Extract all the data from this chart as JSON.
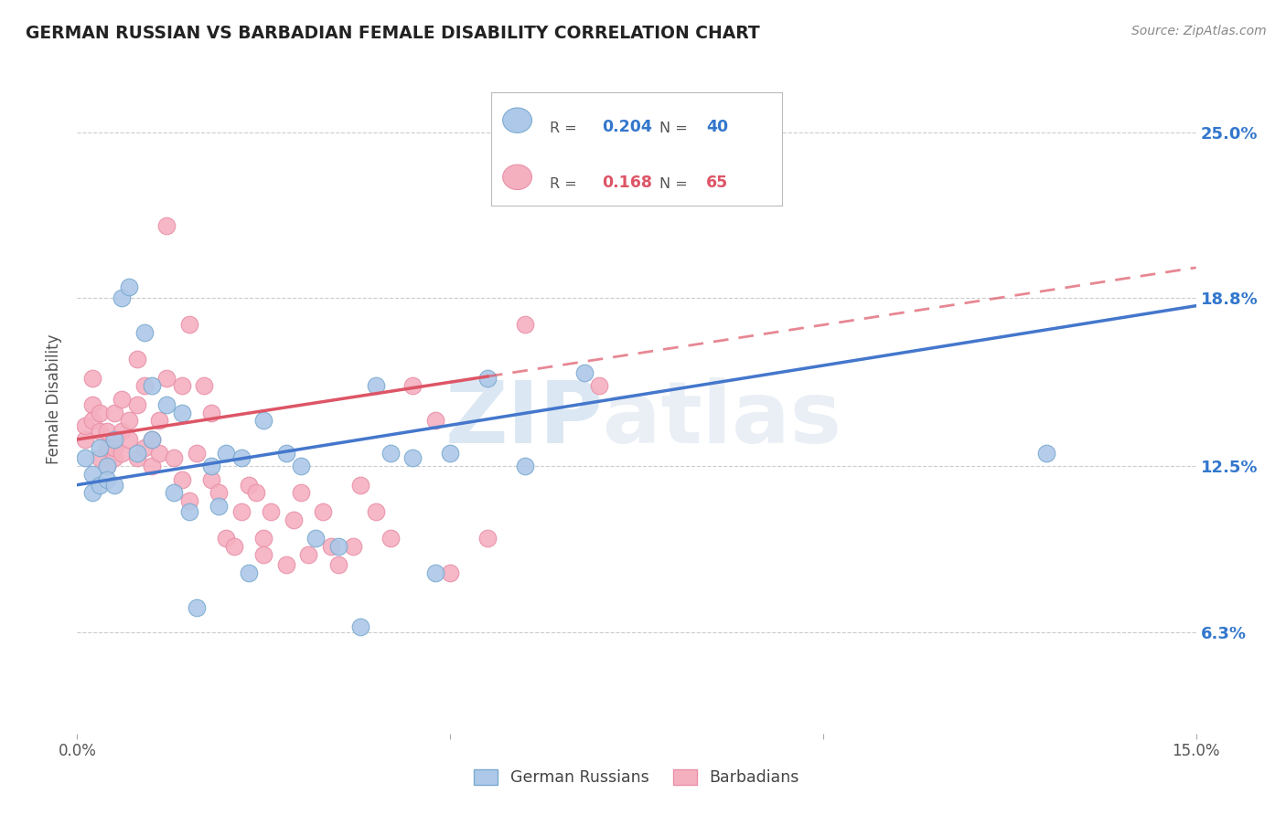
{
  "title": "GERMAN RUSSIAN VS BARBADIAN FEMALE DISABILITY CORRELATION CHART",
  "source": "Source: ZipAtlas.com",
  "ylabel": "Female Disability",
  "ytick_labels": [
    "6.3%",
    "12.5%",
    "18.8%",
    "25.0%"
  ],
  "ytick_values": [
    0.063,
    0.125,
    0.188,
    0.25
  ],
  "xmin": 0.0,
  "xmax": 0.15,
  "ymin": 0.025,
  "ymax": 0.275,
  "watermark_zip": "ZIP",
  "watermark_atlas": "atlas",
  "legend_blue_r": "0.204",
  "legend_blue_n": "40",
  "legend_pink_r": "0.168",
  "legend_pink_n": "65",
  "blue_color": "#adc8e8",
  "pink_color": "#f5b0c0",
  "blue_edge": "#7aaad0",
  "pink_edge": "#e890a8",
  "blue_line_color": "#4477cc",
  "pink_line_color": "#dd5566",
  "blue_scatter": [
    [
      0.001,
      0.128
    ],
    [
      0.002,
      0.122
    ],
    [
      0.002,
      0.115
    ],
    [
      0.003,
      0.132
    ],
    [
      0.003,
      0.118
    ],
    [
      0.004,
      0.125
    ],
    [
      0.004,
      0.12
    ],
    [
      0.005,
      0.118
    ],
    [
      0.005,
      0.135
    ],
    [
      0.006,
      0.188
    ],
    [
      0.007,
      0.192
    ],
    [
      0.008,
      0.13
    ],
    [
      0.009,
      0.175
    ],
    [
      0.01,
      0.155
    ],
    [
      0.01,
      0.135
    ],
    [
      0.012,
      0.148
    ],
    [
      0.013,
      0.115
    ],
    [
      0.014,
      0.145
    ],
    [
      0.015,
      0.108
    ],
    [
      0.016,
      0.072
    ],
    [
      0.018,
      0.125
    ],
    [
      0.019,
      0.11
    ],
    [
      0.02,
      0.13
    ],
    [
      0.022,
      0.128
    ],
    [
      0.023,
      0.085
    ],
    [
      0.025,
      0.142
    ],
    [
      0.028,
      0.13
    ],
    [
      0.03,
      0.125
    ],
    [
      0.032,
      0.098
    ],
    [
      0.035,
      0.095
    ],
    [
      0.038,
      0.065
    ],
    [
      0.04,
      0.155
    ],
    [
      0.042,
      0.13
    ],
    [
      0.045,
      0.128
    ],
    [
      0.048,
      0.085
    ],
    [
      0.05,
      0.13
    ],
    [
      0.055,
      0.158
    ],
    [
      0.06,
      0.125
    ],
    [
      0.068,
      0.16
    ],
    [
      0.13,
      0.13
    ]
  ],
  "pink_scatter": [
    [
      0.001,
      0.135
    ],
    [
      0.001,
      0.14
    ],
    [
      0.002,
      0.148
    ],
    [
      0.002,
      0.158
    ],
    [
      0.002,
      0.142
    ],
    [
      0.003,
      0.128
    ],
    [
      0.003,
      0.138
    ],
    [
      0.003,
      0.145
    ],
    [
      0.004,
      0.125
    ],
    [
      0.004,
      0.132
    ],
    [
      0.004,
      0.138
    ],
    [
      0.005,
      0.128
    ],
    [
      0.005,
      0.132
    ],
    [
      0.005,
      0.145
    ],
    [
      0.006,
      0.13
    ],
    [
      0.006,
      0.138
    ],
    [
      0.006,
      0.15
    ],
    [
      0.007,
      0.135
    ],
    [
      0.007,
      0.142
    ],
    [
      0.008,
      0.148
    ],
    [
      0.008,
      0.128
    ],
    [
      0.008,
      0.165
    ],
    [
      0.009,
      0.155
    ],
    [
      0.009,
      0.132
    ],
    [
      0.01,
      0.125
    ],
    [
      0.01,
      0.135
    ],
    [
      0.011,
      0.13
    ],
    [
      0.011,
      0.142
    ],
    [
      0.012,
      0.158
    ],
    [
      0.012,
      0.215
    ],
    [
      0.013,
      0.128
    ],
    [
      0.014,
      0.155
    ],
    [
      0.014,
      0.12
    ],
    [
      0.015,
      0.112
    ],
    [
      0.015,
      0.178
    ],
    [
      0.016,
      0.13
    ],
    [
      0.017,
      0.155
    ],
    [
      0.018,
      0.12
    ],
    [
      0.018,
      0.145
    ],
    [
      0.019,
      0.115
    ],
    [
      0.02,
      0.098
    ],
    [
      0.021,
      0.095
    ],
    [
      0.022,
      0.108
    ],
    [
      0.023,
      0.118
    ],
    [
      0.024,
      0.115
    ],
    [
      0.025,
      0.098
    ],
    [
      0.025,
      0.092
    ],
    [
      0.026,
      0.108
    ],
    [
      0.028,
      0.088
    ],
    [
      0.029,
      0.105
    ],
    [
      0.03,
      0.115
    ],
    [
      0.031,
      0.092
    ],
    [
      0.033,
      0.108
    ],
    [
      0.034,
      0.095
    ],
    [
      0.035,
      0.088
    ],
    [
      0.037,
      0.095
    ],
    [
      0.038,
      0.118
    ],
    [
      0.04,
      0.108
    ],
    [
      0.042,
      0.098
    ],
    [
      0.045,
      0.155
    ],
    [
      0.048,
      0.142
    ],
    [
      0.05,
      0.085
    ],
    [
      0.055,
      0.098
    ],
    [
      0.06,
      0.178
    ],
    [
      0.07,
      0.155
    ]
  ]
}
